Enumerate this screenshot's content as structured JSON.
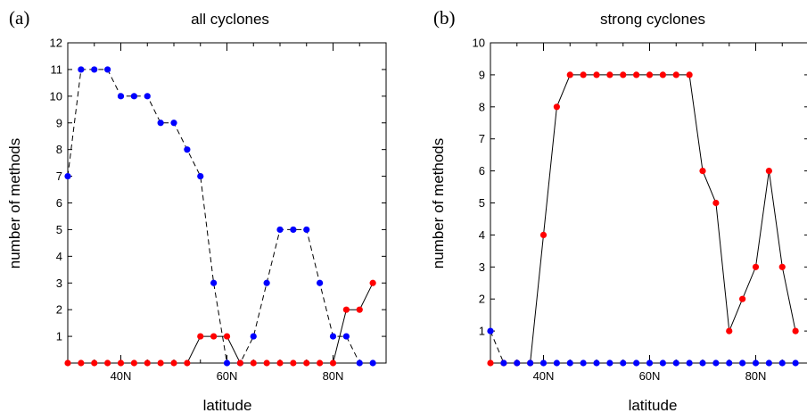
{
  "chart_data": [
    {
      "type": "line",
      "panel_label": "(a)",
      "title": "all cyclones",
      "xlabel": "latitude",
      "ylabel": "number of methods",
      "xlim": [
        30,
        90
      ],
      "ylim": [
        0,
        12
      ],
      "x_tick_labels": [
        {
          "x": 40,
          "label": "40N"
        },
        {
          "x": 60,
          "label": "60N"
        },
        {
          "x": 80,
          "label": "80N"
        }
      ],
      "y_ticks": [
        1,
        2,
        3,
        4,
        5,
        6,
        7,
        8,
        9,
        10,
        11,
        12
      ],
      "grid": false,
      "series": [
        {
          "color": "#0000ff",
          "line_style": "dashed",
          "x": [
            30,
            32.5,
            35,
            37.5,
            40,
            42.5,
            45,
            47.5,
            50,
            52.5,
            55,
            57.5,
            60,
            62.5,
            65,
            67.5,
            70,
            72.5,
            75,
            77.5,
            80,
            82.5,
            85,
            87.5
          ],
          "values": [
            7,
            11,
            11,
            11,
            10,
            10,
            10,
            9,
            9,
            8,
            7,
            3,
            0,
            0,
            1,
            3,
            5,
            5,
            5,
            3,
            1,
            1,
            0,
            0
          ]
        },
        {
          "color": "#ff0000",
          "line_style": "solid",
          "x": [
            30,
            32.5,
            35,
            37.5,
            40,
            42.5,
            45,
            47.5,
            50,
            52.5,
            55,
            57.5,
            60,
            62.5,
            65,
            67.5,
            70,
            72.5,
            75,
            77.5,
            80,
            82.5,
            85,
            87.5
          ],
          "values": [
            0,
            0,
            0,
            0,
            0,
            0,
            0,
            0,
            0,
            0,
            1,
            1,
            1,
            0,
            0,
            0,
            0,
            0,
            0,
            0,
            0,
            2,
            2,
            3
          ]
        }
      ]
    },
    {
      "type": "line",
      "panel_label": "(b)",
      "title": "strong cyclones",
      "xlabel": "latitude",
      "ylabel": "number of methods",
      "xlim": [
        30,
        90
      ],
      "ylim": [
        0,
        10
      ],
      "x_tick_labels": [
        {
          "x": 40,
          "label": "40N"
        },
        {
          "x": 60,
          "label": "60N"
        },
        {
          "x": 80,
          "label": "80N"
        }
      ],
      "y_ticks": [
        1,
        2,
        3,
        4,
        5,
        6,
        7,
        8,
        9,
        10
      ],
      "grid": false,
      "series": [
        {
          "color": "#ff0000",
          "line_style": "solid",
          "x": [
            30,
            32.5,
            35,
            37.5,
            40,
            42.5,
            45,
            47.5,
            50,
            52.5,
            55,
            57.5,
            60,
            62.5,
            65,
            67.5,
            70,
            72.5,
            75,
            77.5,
            80,
            82.5,
            85,
            87.5
          ],
          "values": [
            0,
            0,
            0,
            0,
            4,
            8,
            9,
            9,
            9,
            9,
            9,
            9,
            9,
            9,
            9,
            9,
            6,
            5,
            1,
            2,
            3,
            6,
            3,
            1
          ]
        },
        {
          "color": "#0000ff",
          "line_style": "dashed",
          "x": [
            30,
            32.5,
            35,
            37.5,
            40,
            42.5,
            45,
            47.5,
            50,
            52.5,
            55,
            57.5,
            60,
            62.5,
            65,
            67.5,
            70,
            72.5,
            75,
            77.5,
            80,
            82.5,
            85,
            87.5
          ],
          "values": [
            1,
            0,
            0,
            0,
            0,
            0,
            0,
            0,
            0,
            0,
            0,
            0,
            0,
            0,
            0,
            0,
            0,
            0,
            0,
            0,
            0,
            0,
            0,
            0
          ]
        }
      ]
    }
  ]
}
